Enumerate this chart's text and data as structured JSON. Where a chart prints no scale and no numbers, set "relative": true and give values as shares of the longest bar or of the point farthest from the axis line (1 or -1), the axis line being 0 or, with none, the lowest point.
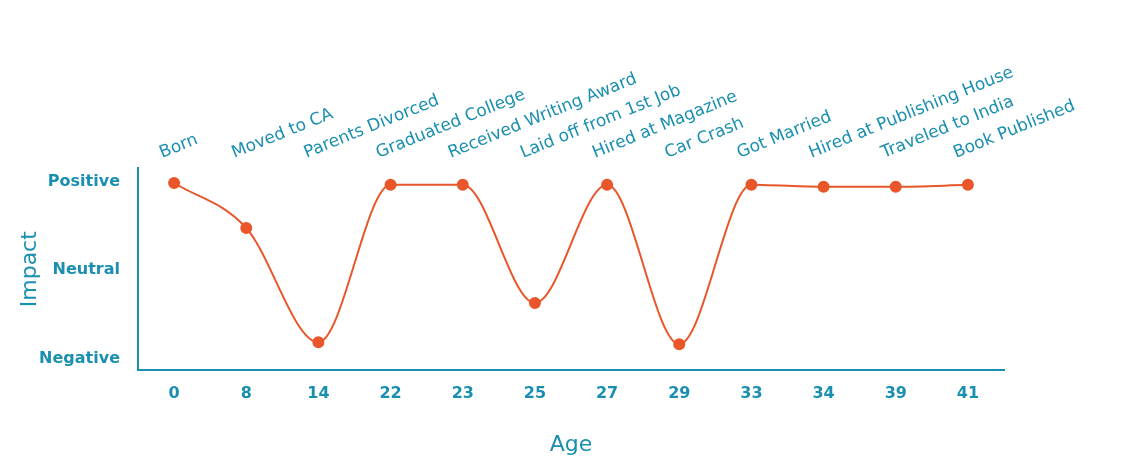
{
  "chart_data": {
    "type": "line",
    "xlabel": "Age",
    "ylabel": "Impact",
    "relative": true,
    "categories": [
      "0",
      "8",
      "14",
      "22",
      "23",
      "25",
      "27",
      "29",
      "33",
      "34",
      "39",
      "41"
    ],
    "series": [
      {
        "color": "#e8562a",
        "values": [
          1,
          0.76,
          0.15,
          0.99,
          0.99,
          0.36,
          0.99,
          0.14,
          0.99,
          0.98,
          0.98,
          0.99
        ]
      }
    ],
    "annotations": [
      "Born",
      "Moved to CA",
      "Parents Divorced",
      "Graduated College",
      "Received Writing Award",
      "Laid off from 1st Job",
      "Hired at Magazine",
      "Car Crash",
      "Got Married",
      "Hired at Publishing House",
      "Traveled to India",
      "Book Published",
      "Positive",
      "Neutral",
      "Negative"
    ],
    "marker": "circle",
    "line_style": "solid",
    "grid": false,
    "legend": false
  }
}
